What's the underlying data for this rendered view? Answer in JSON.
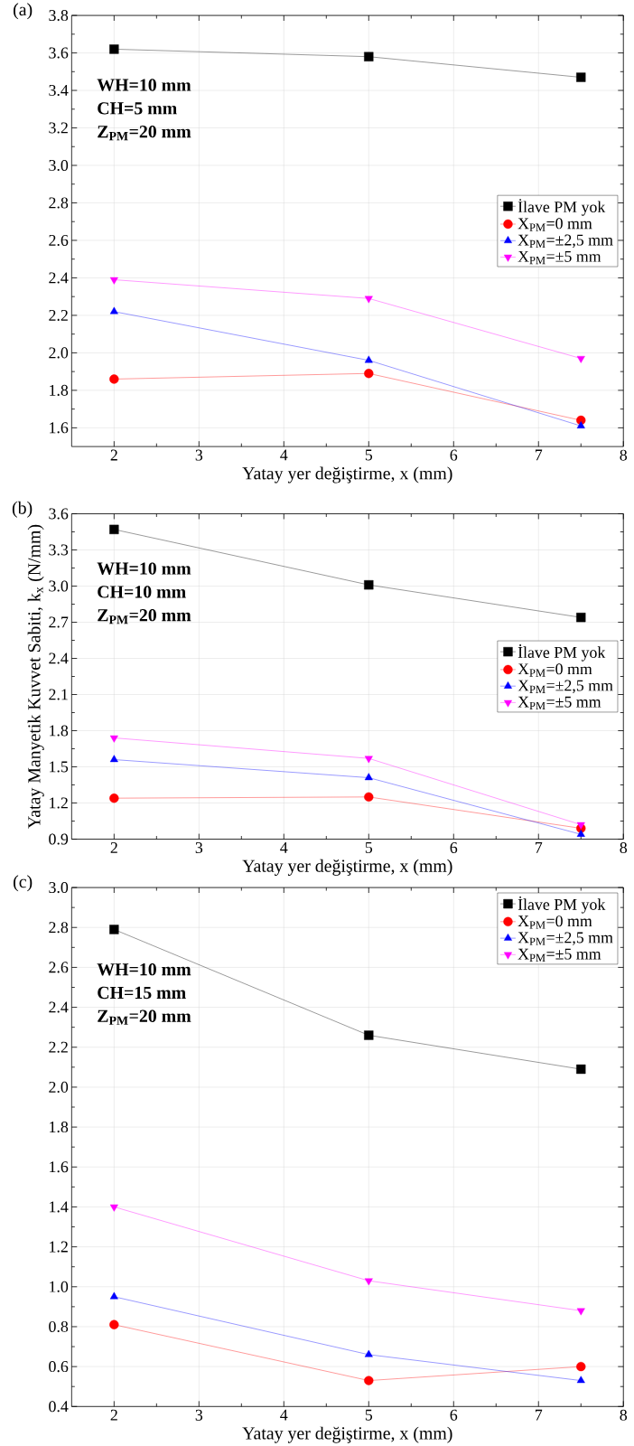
{
  "chart_data": [
    {
      "type": "line",
      "title": "(a)",
      "xlabel": "Yatay yer değiştirme, x (mm)",
      "x": [
        2,
        5,
        7.5
      ],
      "xlim": [
        1.5,
        8
      ],
      "xticks": [
        2,
        3,
        4,
        5,
        6,
        7,
        8
      ],
      "ylim": [
        1.5,
        3.8
      ],
      "yticks": [
        1.6,
        1.8,
        {
          "value": 2.0,
          "label": "2.0"
        },
        2.2,
        2.4,
        2.6,
        2.8,
        {
          "value": 3.0,
          "label": "3.0"
        },
        3.2,
        3.4,
        3.6,
        3.8
      ],
      "grid": true,
      "legend": "right",
      "line_style": "solid",
      "annotations": [
        "WH=10 mm",
        "CH=5 mm",
        "Z$_{PM}$=20 mm"
      ],
      "series": [
        {
          "name": "İlave PM yok",
          "color": "#000000",
          "marker": "square",
          "values": [
            3.62,
            3.58,
            3.47
          ]
        },
        {
          "name": "X$_{PM}$=0 mm",
          "color": "#ff0000",
          "marker": "circle",
          "values": [
            1.86,
            1.89,
            1.64
          ]
        },
        {
          "name": "X$_{PM}$=±2,5 mm",
          "color": "#0000ff",
          "marker": "triangle",
          "values": [
            2.22,
            1.96,
            1.61
          ]
        },
        {
          "name": "X$_{PM}$=±5 mm",
          "color": "#ff00ff",
          "marker": "triangle-down",
          "values": [
            2.39,
            2.29,
            1.97
          ]
        }
      ]
    },
    {
      "type": "line",
      "title": "(b)",
      "xlabel": "Yatay yer değiştirme, x (mm)",
      "ylabel": "Yatay Manyetik Kuvvet Sabiti, k$_{x}$ (N/mm)",
      "x": [
        2,
        5,
        7.5
      ],
      "xlim": [
        1.5,
        8
      ],
      "xticks": [
        2,
        3,
        4,
        5,
        6,
        7,
        8
      ],
      "ylim": [
        0.9,
        3.6
      ],
      "yticks": [
        0.9,
        1.2,
        1.5,
        1.8,
        2.1,
        2.4,
        2.7,
        {
          "value": 3.0,
          "label": "3.0"
        },
        3.3,
        3.6
      ],
      "grid": true,
      "legend": "right",
      "line_style": "solid",
      "annotations": [
        "WH=10 mm",
        "CH=10 mm",
        "Z$_{PM}$=20 mm"
      ],
      "series": [
        {
          "name": "İlave PM yok",
          "color": "#000000",
          "marker": "square",
          "values": [
            3.47,
            3.01,
            2.74
          ]
        },
        {
          "name": "X$_{PM}$=0 mm",
          "color": "#ff0000",
          "marker": "circle",
          "values": [
            1.24,
            1.25,
            0.99
          ]
        },
        {
          "name": "X$_{PM}$=±2,5 mm",
          "color": "#0000ff",
          "marker": "triangle",
          "values": [
            1.56,
            1.41,
            0.94
          ]
        },
        {
          "name": "X$_{PM}$=±5 mm",
          "color": "#ff00ff",
          "marker": "triangle-down",
          "values": [
            1.74,
            1.57,
            1.02
          ]
        }
      ]
    },
    {
      "type": "line",
      "title": "(c)",
      "xlabel": "Yatay yer değiştirme, x (mm)",
      "x": [
        2,
        5,
        7.5
      ],
      "xlim": [
        1.5,
        8
      ],
      "xticks": [
        2,
        3,
        4,
        5,
        6,
        7,
        8
      ],
      "ylim": [
        0.4,
        3.0
      ],
      "yticks": [
        0.4,
        0.6,
        0.8,
        {
          "value": 1.0,
          "label": "1.0"
        },
        1.2,
        1.4,
        1.6,
        1.8,
        {
          "value": 2.0,
          "label": "2.0"
        },
        2.2,
        2.4,
        2.6,
        2.8,
        {
          "value": 3.0,
          "label": "3.0"
        }
      ],
      "grid": true,
      "legend": "top right",
      "line_style": "solid",
      "annotations": [
        "WH=10 mm",
        "CH=15 mm",
        "Z$_{PM}$=20 mm"
      ],
      "series": [
        {
          "name": "İlave PM yok",
          "color": "#000000",
          "marker": "square",
          "values": [
            2.79,
            2.26,
            2.09
          ]
        },
        {
          "name": "X$_{PM}$=0 mm",
          "color": "#ff0000",
          "marker": "circle",
          "values": [
            0.81,
            0.53,
            0.6
          ]
        },
        {
          "name": "X$_{PM}$=±2,5 mm",
          "color": "#0000ff",
          "marker": "triangle",
          "values": [
            0.95,
            0.66,
            0.53
          ]
        },
        {
          "name": "X$_{PM}$=±5 mm",
          "color": "#ff00ff",
          "marker": "triangle-down",
          "values": [
            1.4,
            1.03,
            0.88
          ]
        }
      ]
    }
  ]
}
